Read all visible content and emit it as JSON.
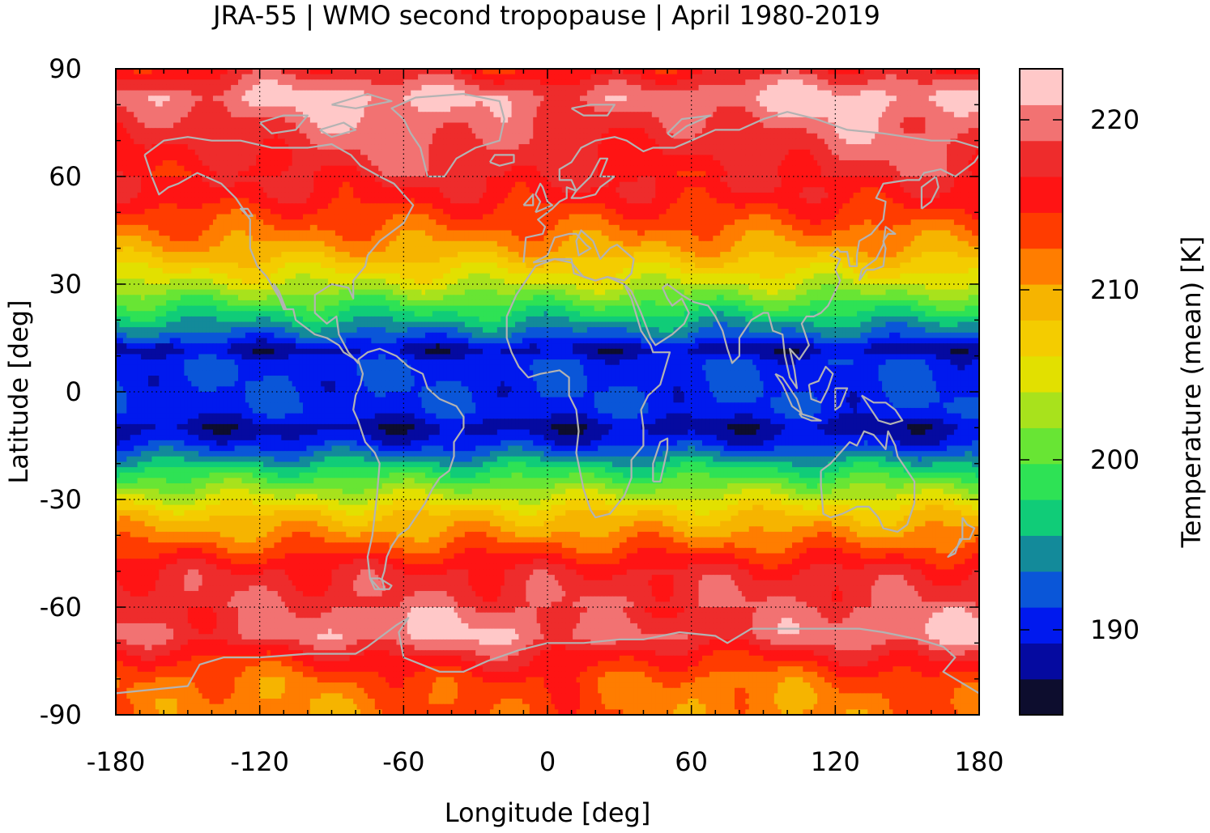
{
  "chart_data": {
    "type": "heatmap",
    "title": "JRA-55 | WMO second tropopause | April 1980-2019",
    "xlabel": "Longitude [deg]",
    "ylabel": "Latitude [deg]",
    "colorbar_label": "Temperature (mean) [K]",
    "xlim": [
      -180,
      180
    ],
    "ylim": [
      -90,
      90
    ],
    "x_ticks": [
      -180,
      -120,
      -60,
      0,
      60,
      120,
      180
    ],
    "y_ticks": [
      90,
      60,
      30,
      0,
      -30,
      -60,
      -90
    ],
    "x_tick_labels": [
      "-180",
      "-120",
      "-60",
      "0",
      "60",
      "120",
      "180"
    ],
    "y_tick_labels": [
      "90",
      "60",
      "30",
      "0",
      "-30",
      "-60",
      "-90"
    ],
    "grid": true,
    "colorbar": {
      "range": [
        185,
        223
      ],
      "ticks": [
        220,
        210,
        200,
        190
      ],
      "tick_labels": [
        "220",
        "210",
        "200",
        "190"
      ],
      "colors": [
        "#0d0d2e",
        "#050aa0",
        "#0019ee",
        "#0a56d8",
        "#138a9a",
        "#10cc78",
        "#2ee255",
        "#68e534",
        "#a8e21c",
        "#e2e000",
        "#f4cc00",
        "#f6b400",
        "#ff7d00",
        "#ff3c00",
        "#ff1414",
        "#ee2c2c",
        "#f27272",
        "#ffc8c8"
      ]
    },
    "lat_profile": [
      [
        90,
        216
      ],
      [
        82,
        221
      ],
      [
        75,
        219
      ],
      [
        68,
        218
      ],
      [
        62,
        217
      ],
      [
        55,
        216
      ],
      [
        50,
        214
      ],
      [
        45,
        212
      ],
      [
        40,
        210
      ],
      [
        35,
        207
      ],
      [
        30,
        204
      ],
      [
        25,
        200
      ],
      [
        20,
        196
      ],
      [
        15,
        192
      ],
      [
        12,
        188
      ],
      [
        8,
        191
      ],
      [
        0,
        191
      ],
      [
        -5,
        191
      ],
      [
        -10,
        188
      ],
      [
        -14,
        190
      ],
      [
        -18,
        194
      ],
      [
        -22,
        198
      ],
      [
        -28,
        203
      ],
      [
        -34,
        208
      ],
      [
        -40,
        211
      ],
      [
        -45,
        214
      ],
      [
        -50,
        217
      ],
      [
        -55,
        218
      ],
      [
        -62,
        219
      ],
      [
        -68,
        220
      ],
      [
        -74,
        216
      ],
      [
        -80,
        213
      ],
      [
        -86,
        212
      ],
      [
        -90,
        212
      ]
    ],
    "coastline_color": "#b3b3b3"
  }
}
